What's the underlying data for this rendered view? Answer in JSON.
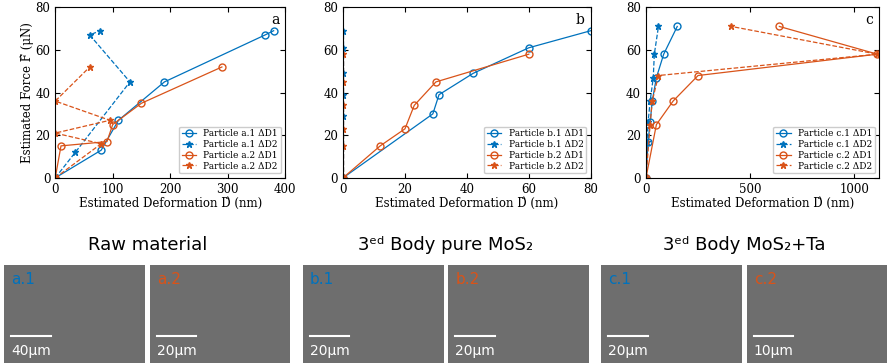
{
  "chart_data": [
    {
      "type": "line",
      "annotation": "a",
      "x_label": "Estimated Deformation D̂ (nm)",
      "y_label": "Estimated Force F̂ (μN)",
      "xlim": [
        0,
        400
      ],
      "xticks": [
        0,
        100,
        200,
        300,
        400
      ],
      "ylim": [
        0,
        80
      ],
      "yticks": [
        0,
        20,
        40,
        60,
        80
      ],
      "legend": "lower right",
      "series": [
        {
          "name": "Particle a.1 ΔD1",
          "color": "#0072BD",
          "marker": "circle",
          "line_style": "solid",
          "x": [
            0,
            80,
            110,
            190,
            365,
            380
          ],
          "values": [
            0,
            13,
            27,
            45,
            67,
            69
          ]
        },
        {
          "name": "Particle a.1 ΔD2",
          "color": "#0072BD",
          "marker": "star",
          "line_style": "dashed",
          "x": [
            0,
            35,
            130,
            60,
            78
          ],
          "values": [
            0,
            12,
            45,
            67,
            69
          ]
        },
        {
          "name": "Particle a.2 ΔD1",
          "color": "#D95319",
          "marker": "circle",
          "line_style": "solid",
          "x": [
            0,
            10,
            90,
            100,
            150,
            290
          ],
          "values": [
            0,
            15,
            17,
            25,
            35,
            52
          ]
        },
        {
          "name": "Particle a.2 ΔD2",
          "color": "#D95319",
          "marker": "star",
          "line_style": "dashed",
          "x": [
            0,
            80,
            0,
            95,
            0,
            60
          ],
          "values": [
            0,
            16,
            21,
            27,
            36,
            52
          ]
        }
      ]
    },
    {
      "type": "line",
      "annotation": "b",
      "x_label": "Estimated Deformation D̂ (nm)",
      "xlim": [
        0,
        80
      ],
      "xticks": [
        0,
        20,
        40,
        60,
        80
      ],
      "ylim": [
        0,
        80
      ],
      "yticks": [
        0,
        20,
        40,
        60,
        80
      ],
      "legend": "lower right",
      "series": [
        {
          "name": "Particle b.1 ΔD1",
          "color": "#0072BD",
          "marker": "circle",
          "line_style": "solid",
          "x": [
            0,
            29,
            31,
            42,
            60,
            80
          ],
          "values": [
            0,
            30,
            39,
            49,
            61,
            69
          ]
        },
        {
          "name": "Particle b.1 ΔD2",
          "color": "#0072BD",
          "marker": "star",
          "line_style": "dashed",
          "x": [
            0,
            0,
            0,
            0,
            0,
            0
          ],
          "values": [
            0,
            29,
            39,
            49,
            61,
            69
          ]
        },
        {
          "name": "Particle b.2 ΔD1",
          "color": "#D95319",
          "marker": "circle",
          "line_style": "solid",
          "x": [
            0,
            12,
            20,
            23,
            30,
            60
          ],
          "values": [
            0,
            15,
            23,
            34,
            45,
            58
          ]
        },
        {
          "name": "Particle b.2 ΔD2",
          "color": "#D95319",
          "marker": "star",
          "line_style": "dashed",
          "x": [
            0,
            0,
            0,
            0,
            0,
            0
          ],
          "values": [
            0,
            15,
            23,
            34,
            45,
            58
          ]
        }
      ]
    },
    {
      "type": "line",
      "annotation": "c",
      "x_label": "Estimated Deformation D̂ (nm)",
      "xlim": [
        0,
        1120
      ],
      "xticks": [
        0,
        500,
        1000
      ],
      "ylim": [
        0,
        80
      ],
      "yticks": [
        0,
        20,
        40,
        60,
        80
      ],
      "legend": "lower right",
      "series": [
        {
          "name": "Particle c.1 ΔD1",
          "color": "#0072BD",
          "marker": "circle",
          "line_style": "solid",
          "x": [
            0,
            10,
            20,
            30,
            50,
            85,
            150
          ],
          "values": [
            0,
            17,
            26,
            36,
            47,
            58,
            71
          ]
        },
        {
          "name": "Particle c.1 ΔD2",
          "color": "#0072BD",
          "marker": "star",
          "line_style": "dashed",
          "x": [
            0,
            5,
            10,
            20,
            35,
            40,
            60
          ],
          "values": [
            0,
            17,
            26,
            36,
            47,
            58,
            71
          ]
        },
        {
          "name": "Particle c.2 ΔD1",
          "color": "#D95319",
          "marker": "circle",
          "line_style": "solid",
          "x": [
            0,
            50,
            130,
            250,
            1110,
            640
          ],
          "values": [
            0,
            25,
            36,
            48,
            58,
            71
          ]
        },
        {
          "name": "Particle c.2 ΔD2",
          "color": "#D95319",
          "marker": "star",
          "line_style": "dashed",
          "x": [
            0,
            20,
            30,
            60,
            1110,
            410
          ],
          "values": [
            0,
            25,
            36,
            48,
            58,
            71
          ]
        }
      ]
    }
  ],
  "image_groups": [
    {
      "caption": "Raw material",
      "images": [
        {
          "label": "a.1",
          "color": "#0072BD",
          "scale_bar": "40μm"
        },
        {
          "label": "a.2",
          "color": "#D95319",
          "scale_bar": "20μm"
        }
      ]
    },
    {
      "caption": "3ᵉᵈ Body pure MoS₂",
      "images": [
        {
          "label": "b.1",
          "color": "#0072BD",
          "scale_bar": "20μm"
        },
        {
          "label": "b.2",
          "color": "#D95319",
          "scale_bar": "20μm"
        }
      ]
    },
    {
      "caption": "3ᵉᵈ Body MoS₂+Ta",
      "images": [
        {
          "label": "c.1",
          "color": "#0072BD",
          "scale_bar": "20μm"
        },
        {
          "label": "c.2",
          "color": "#D95319",
          "scale_bar": "10μm"
        }
      ]
    }
  ]
}
